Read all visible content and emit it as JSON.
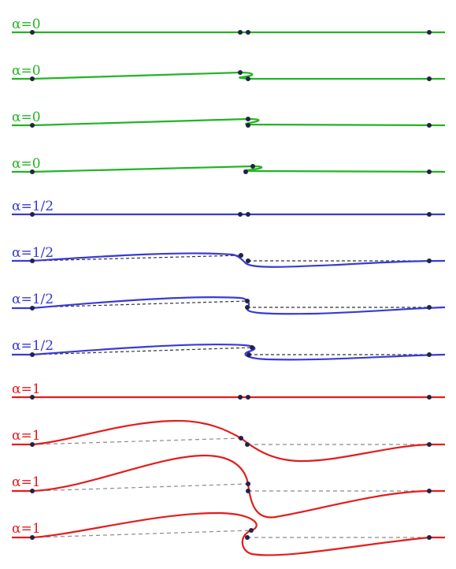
{
  "colors": {
    "green": "#22b422",
    "blue": "#3a3ad8",
    "red": "#e41c1c",
    "node": "#222244",
    "dash_dark": "#333333",
    "dash_grey": "#8a8a8a"
  },
  "rows": [
    {
      "label": "α=0",
      "color_key": "green"
    },
    {
      "label": "α=0",
      "color_key": "green"
    },
    {
      "label": "α=0",
      "color_key": "green"
    },
    {
      "label": "α=0",
      "color_key": "green"
    },
    {
      "label": "α=1/2",
      "color_key": "blue"
    },
    {
      "label": "α=1/2",
      "color_key": "blue"
    },
    {
      "label": "α=1/2",
      "color_key": "blue"
    },
    {
      "label": "α=1/2",
      "color_key": "blue"
    },
    {
      "label": "α=1",
      "color_key": "red"
    },
    {
      "label": "α=1",
      "color_key": "red"
    },
    {
      "label": "α=1",
      "color_key": "red"
    },
    {
      "label": "α=1",
      "color_key": "red"
    }
  ]
}
